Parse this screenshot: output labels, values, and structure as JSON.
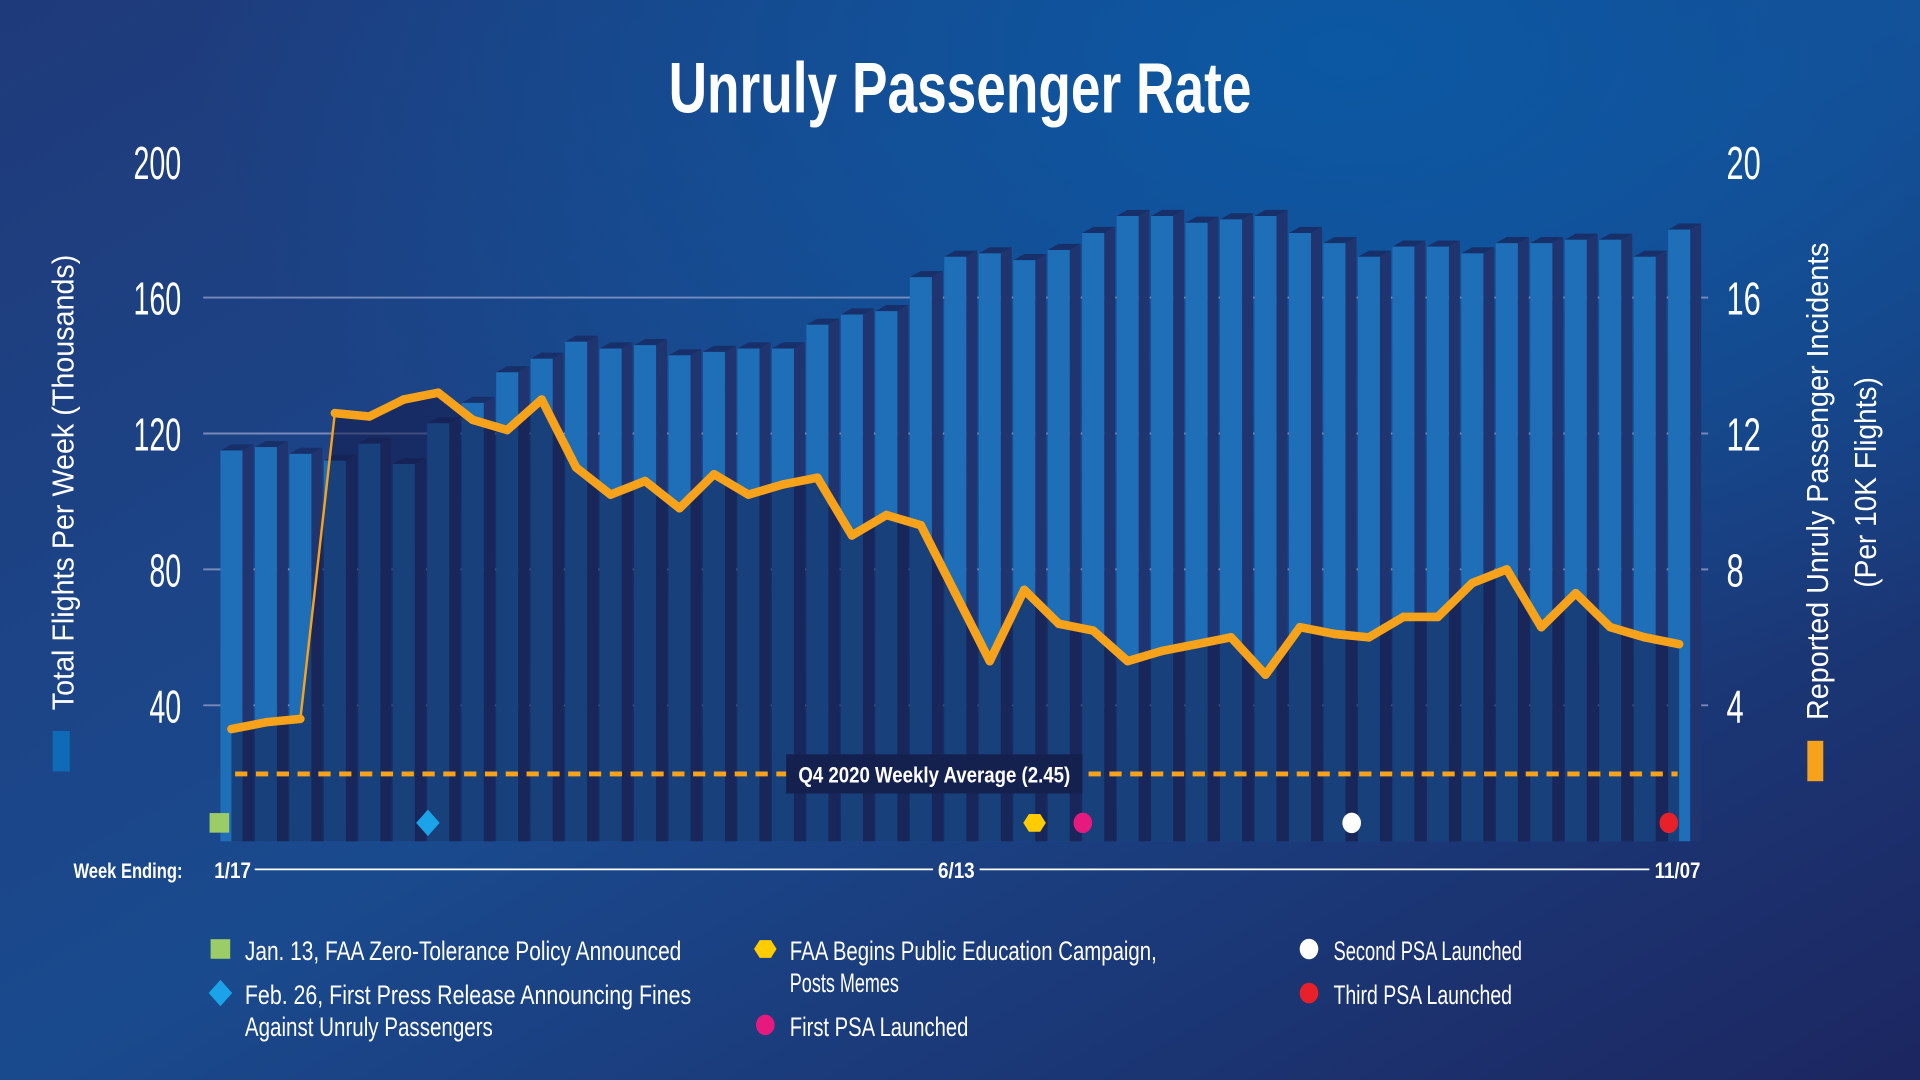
{
  "chart_data": {
    "type": "bar+line",
    "title": "Unruly Passenger Rate",
    "ylabel_left": "Total Flights Per Week (Thousands)",
    "ylabel_right": [
      "Reported Unruly Passenger Incidents",
      "(Per 10K Flights)"
    ],
    "ylim_left": [
      0,
      200
    ],
    "ylim_right": [
      0,
      20
    ],
    "yticks_left": [
      "40",
      "80",
      "120",
      "160",
      "200"
    ],
    "yticks_right": [
      "4",
      "8",
      "12",
      "16",
      "20"
    ],
    "xlabel": "Week Ending:",
    "xtick_labels": [
      {
        "index": 0,
        "label": "1/17"
      },
      {
        "index": 21,
        "label": "6/13"
      },
      {
        "index": 42,
        "label": "11/07"
      }
    ],
    "grid": true,
    "colors": {
      "bars": "#1e6fb8",
      "line": "#f7a21b",
      "background": "#1d3370"
    },
    "series": [
      {
        "type": "bar",
        "axis": "left",
        "values": [
          115,
          116,
          114,
          112,
          117,
          111,
          123,
          129,
          138,
          142,
          147,
          145,
          146,
          143,
          144,
          145,
          145,
          152,
          155,
          156,
          166,
          172,
          173,
          171,
          174,
          179,
          184,
          184,
          182,
          183,
          184,
          179,
          176,
          172,
          175,
          175,
          173,
          176,
          176,
          177,
          177,
          172,
          180
        ]
      },
      {
        "type": "line",
        "axis": "right",
        "values": [
          3.3,
          3.5,
          3.6,
          12.6,
          12.5,
          13.0,
          13.2,
          12.4,
          12.1,
          13.0,
          11.0,
          10.2,
          10.6,
          9.8,
          10.8,
          10.2,
          10.5,
          10.7,
          9.0,
          9.6,
          9.3,
          7.3,
          5.3,
          7.4,
          6.4,
          6.2,
          5.3,
          5.6,
          5.8,
          6.0,
          4.9,
          6.3,
          6.1,
          6.0,
          6.6,
          6.6,
          7.6,
          8.0,
          6.3,
          7.3,
          6.3,
          6.0,
          5.8
        ]
      }
    ],
    "reference_line": {
      "value": 2.45,
      "axis": "right",
      "label": "Q4 2020 Weekly Average (2.45)"
    },
    "events": [
      {
        "index": -0.35,
        "shape": "square",
        "color": "#9ccc65",
        "label": [
          "Jan. 13, FAA Zero-Tolerance Policy Announced"
        ]
      },
      {
        "index": 5.7,
        "shape": "diamond",
        "color": "#1aa3e8",
        "label": [
          "Feb. 26, First Press Release Announcing Fines",
          "Against Unruly Passengers"
        ]
      },
      {
        "index": 23.3,
        "shape": "hexagon",
        "color": "#ffcc00",
        "label": [
          "FAA Begins Public Education Campaign,",
          "Posts Memes"
        ]
      },
      {
        "index": 24.7,
        "shape": "circle",
        "color": "#e6197f",
        "label": [
          "First PSA Launched"
        ]
      },
      {
        "index": 32.5,
        "shape": "circle",
        "color": "#ffffff",
        "label": [
          "Second PSA Launched"
        ]
      },
      {
        "index": 41.7,
        "shape": "circle",
        "color": "#e8202a",
        "label": [
          "Third PSA Launched"
        ]
      }
    ]
  }
}
